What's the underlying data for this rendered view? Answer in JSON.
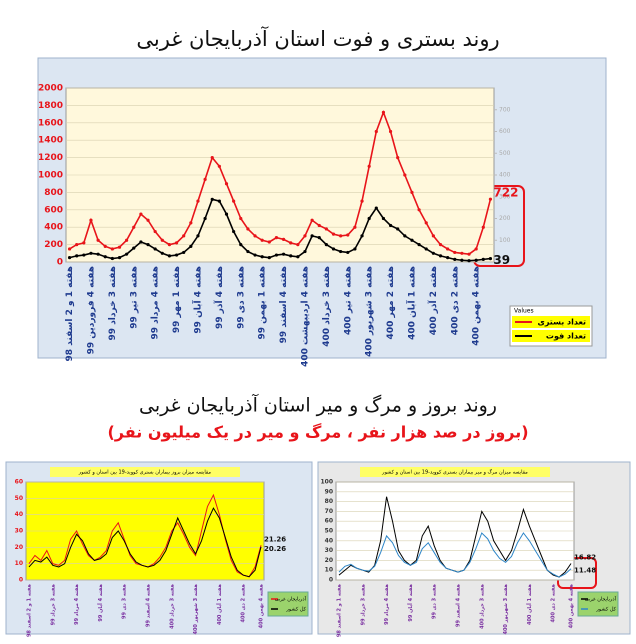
{
  "header": {
    "title": "روند بستری و فوت استان آذربایجان غربی"
  },
  "middle": {
    "title": "روند بروز و مرگ و میر استان آذربایجان غربی",
    "subtitle": "(بروز در صد هزار نفر ، مرگ و میر در یک میلیون نفر)"
  },
  "chart_data": [
    {
      "type": "line",
      "legend_title": "Values",
      "categories": [
        "هفته 1 و 2 اسفند 98",
        null,
        null,
        "هفته 4 فروردین 99",
        null,
        null,
        "هفته 3 خرداد 99",
        null,
        null,
        "هفته 3 تیر 99",
        null,
        null,
        "هفته 4 مرداد 99",
        null,
        null,
        "هفته 1 مهر 99",
        null,
        null,
        "هفته 4 آبان 99",
        null,
        null,
        "هفته 4 آذر 99",
        null,
        null,
        "هفته 3 دی 99",
        null,
        null,
        "هفته 1 بهمن 99",
        null,
        null,
        "هفته 4 اسفند 99",
        null,
        null,
        "هفته 4 اردیبهشت 400",
        null,
        null,
        "هفته 3 خرداد 400",
        null,
        null,
        "هفته 4 تیر 400",
        null,
        null,
        "هفته 3 شهریور 400",
        null,
        null,
        "هفته 2 مهر 400",
        null,
        null,
        "هفته 1 آبان 400",
        null,
        null,
        "هفته 2 آذر 400",
        null,
        null,
        "هفته 2 دی 400",
        null,
        null,
        "هفته 4 بهمن 400",
        null,
        null
      ],
      "series": [
        {
          "name": "تعداد بستری",
          "color": "#e8141a",
          "values": [
            150,
            200,
            220,
            480,
            250,
            180,
            150,
            170,
            250,
            400,
            550,
            480,
            350,
            250,
            200,
            220,
            300,
            450,
            700,
            950,
            1200,
            1100,
            900,
            700,
            500,
            380,
            300,
            250,
            230,
            280,
            260,
            220,
            200,
            300,
            480,
            420,
            380,
            320,
            300,
            310,
            400,
            700,
            1100,
            1500,
            1720,
            1500,
            1200,
            1000,
            800,
            600,
            450,
            300,
            200,
            150,
            110,
            100,
            90,
            150,
            400,
            722
          ]
        },
        {
          "name": "تعداد فوت",
          "color": "#000000",
          "values": [
            50,
            70,
            80,
            100,
            90,
            60,
            40,
            50,
            90,
            160,
            230,
            200,
            150,
            100,
            70,
            80,
            110,
            180,
            300,
            500,
            720,
            700,
            550,
            350,
            200,
            120,
            80,
            60,
            50,
            80,
            90,
            70,
            60,
            120,
            300,
            280,
            200,
            150,
            120,
            110,
            150,
            300,
            500,
            620,
            500,
            420,
            380,
            300,
            250,
            200,
            150,
            100,
            70,
            50,
            30,
            20,
            15,
            20,
            30,
            39
          ]
        }
      ],
      "ylim": [
        0,
        2000
      ],
      "yticks": [
        0,
        200,
        400,
        600,
        800,
        1000,
        1200,
        1400,
        1600,
        1800,
        2000
      ],
      "y2lim": [
        0,
        800
      ],
      "y2ticks": [
        100,
        200,
        300,
        400,
        500,
        600,
        700
      ],
      "grid": true,
      "markers": true,
      "background": "#fff8dc"
    },
    {
      "type": "line",
      "title": "مقایسه میزان بروز بیماران بستری کووید-19 بین استان و کشور",
      "categories": [
        "هفته 1 و 2 اسفند 98",
        null,
        null,
        null,
        "هفته 3 خرداد 99",
        null,
        null,
        null,
        "هفته 4 مرداد 99",
        null,
        null,
        null,
        "هفته 4 آبان 99",
        null,
        null,
        null,
        "هفته 3 دی 99",
        null,
        null,
        null,
        "هفته 4 اسفند 99",
        null,
        null,
        null,
        "هفته 3 خرداد 400",
        null,
        null,
        null,
        "هفته 3 شهریور 400",
        null,
        null,
        null,
        "هفته 1 آبان 400",
        null,
        null,
        null,
        "هفته 2 دی 400",
        null,
        null,
        "هفته 4 بهمن 400"
      ],
      "series": [
        {
          "name": "آذربایجان غربی",
          "color": "#e8141a",
          "values": [
            10,
            15,
            12,
            18,
            10,
            9,
            12,
            25,
            30,
            22,
            15,
            12,
            14,
            18,
            30,
            35,
            25,
            15,
            10,
            9,
            8,
            10,
            14,
            20,
            30,
            35,
            28,
            20,
            15,
            30,
            45,
            52,
            40,
            25,
            12,
            5,
            3,
            2,
            8,
            21.26
          ]
        },
        {
          "name": "کل کشور",
          "color": "#000000",
          "values": [
            8,
            12,
            11,
            14,
            9,
            8,
            10,
            20,
            28,
            24,
            16,
            12,
            13,
            16,
            26,
            30,
            24,
            16,
            11,
            9,
            8,
            9,
            12,
            18,
            28,
            38,
            30,
            22,
            16,
            24,
            36,
            44,
            38,
            26,
            14,
            6,
            3,
            2,
            6,
            20.26
          ]
        }
      ],
      "ylim": [
        0,
        60
      ],
      "yticks": [
        0,
        10,
        20,
        30,
        40,
        50,
        60
      ],
      "grid": true,
      "markers": false,
      "background": "#ffff00"
    },
    {
      "type": "line",
      "title": "مقایسه میزان مرگ و میر بیماران بستری کووید-19 بین استان و کشور",
      "categories": [
        "هفته 1 و 2 اسفند 98",
        null,
        null,
        null,
        "هفته 3 خرداد 99",
        null,
        null,
        null,
        "هفته 4 مرداد 99",
        null,
        null,
        null,
        "هفته 4 آبان 99",
        null,
        null,
        null,
        "هفته 3 دی 99",
        null,
        null,
        null,
        "هفته 4 اسفند 99",
        null,
        null,
        null,
        "هفته 3 خرداد 400",
        null,
        null,
        null,
        "هفته 3 شهریور 400",
        null,
        null,
        null,
        "هفته 1 آبان 400",
        null,
        null,
        null,
        "هفته 2 دی 400",
        null,
        null,
        "هفته 4 بهمن 400"
      ],
      "series": [
        {
          "name": "آذربایجان غربی",
          "color": "#000000",
          "values": [
            5,
            10,
            15,
            12,
            10,
            8,
            15,
            40,
            85,
            60,
            30,
            20,
            15,
            20,
            45,
            55,
            35,
            20,
            12,
            10,
            8,
            10,
            20,
            45,
            70,
            60,
            40,
            30,
            20,
            30,
            50,
            72,
            55,
            40,
            25,
            10,
            5,
            3,
            8,
            16.82
          ]
        },
        {
          "name": "کل کشور",
          "color": "#2e86c8",
          "values": [
            8,
            14,
            16,
            12,
            10,
            9,
            14,
            28,
            45,
            38,
            25,
            18,
            15,
            18,
            32,
            38,
            28,
            18,
            12,
            10,
            8,
            10,
            18,
            32,
            48,
            42,
            30,
            22,
            18,
            24,
            38,
            48,
            40,
            30,
            20,
            10,
            6,
            3,
            6,
            11.48
          ]
        }
      ],
      "ylim": [
        0,
        100
      ],
      "yticks": [
        0,
        10,
        20,
        30,
        40,
        50,
        60,
        70,
        80,
        90,
        100
      ],
      "grid": true,
      "markers": false,
      "background": "#ffffff"
    }
  ]
}
